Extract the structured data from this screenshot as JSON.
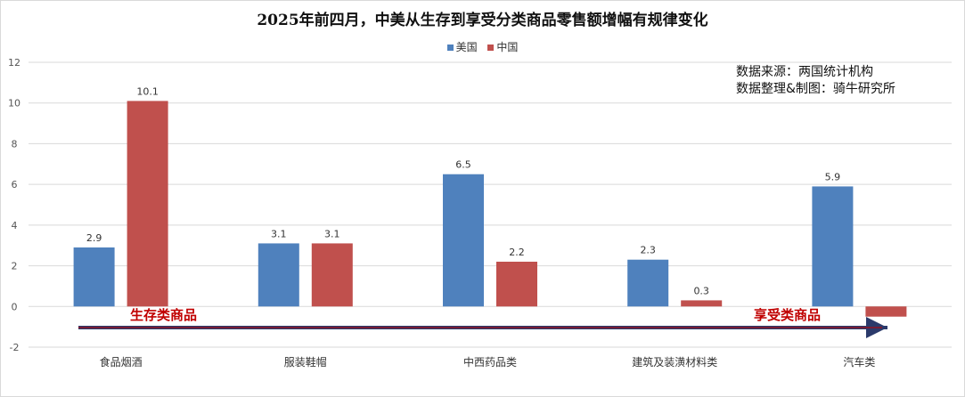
{
  "chart_data": {
    "type": "bar",
    "title": "2025年前四月，中美从生存到享受分类商品零售额增幅有规律变化",
    "categories": [
      "食品烟酒",
      "服装鞋帽",
      "中西药品类",
      "建筑及装潢材料类",
      "汽车类"
    ],
    "series": [
      {
        "name": "美国",
        "color": "#4f81bd",
        "values": [
          2.9,
          3.1,
          6.5,
          2.3,
          5.9
        ],
        "labels": [
          "2.9",
          "3.1",
          "6.5",
          "2.3",
          "5.9"
        ]
      },
      {
        "name": "中国",
        "color": "#c0504d",
        "values": [
          10.1,
          3.1,
          2.2,
          0.3,
          -0.5
        ],
        "labels": [
          "10.1",
          "3.1",
          "2.2",
          "0.3",
          ""
        ]
      }
    ],
    "ylim": [
      -2,
      12
    ],
    "yticks": [
      -2,
      0,
      2,
      4,
      6,
      8,
      10,
      12
    ],
    "xlabel": "",
    "ylabel": "",
    "grid": true,
    "legend": "top-center",
    "annotations": {
      "left": "生存类商品",
      "right": "享受类商品",
      "arrow_color": "#2b3a6b",
      "text_color": "#c00000"
    }
  },
  "source_note": {
    "line1": "数据来源：两国统计机构",
    "line2": "数据整理&制图：骑牛研究所"
  }
}
